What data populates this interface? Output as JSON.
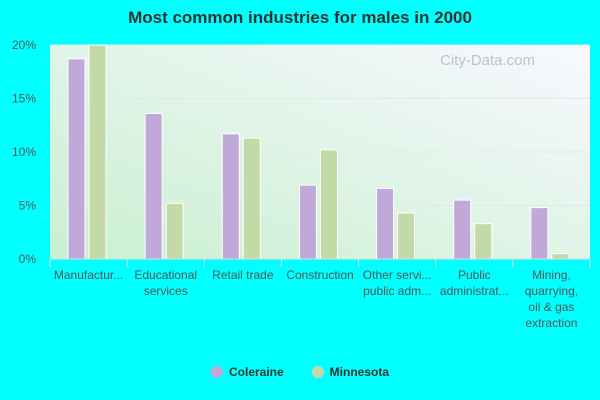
{
  "chart_data": {
    "type": "bar",
    "title": "Most common industries for males in 2000",
    "categories": [
      [
        "Manufactur..."
      ],
      [
        "Educational",
        "services"
      ],
      [
        "Retail trade"
      ],
      [
        "Construction"
      ],
      [
        "Other servi...",
        "public adm..."
      ],
      [
        "Public",
        "administrat..."
      ],
      [
        "Mining,",
        "quarrying,",
        "oil & gas",
        "extraction"
      ]
    ],
    "series": [
      {
        "name": "Coleraine",
        "color": "#c0a8d8",
        "values": [
          18.7,
          13.6,
          11.7,
          6.9,
          6.6,
          5.5,
          4.8
        ]
      },
      {
        "name": "Minnesota",
        "color": "#c4d9a8",
        "values": [
          20.0,
          5.2,
          11.3,
          10.2,
          4.3,
          3.3,
          0.5
        ]
      }
    ],
    "ylim": [
      0,
      20
    ],
    "yticks": [
      "0%",
      "5%",
      "10%",
      "15%",
      "20%"
    ],
    "grid": true,
    "legend": "bottom"
  },
  "watermark": "City-Data.com"
}
